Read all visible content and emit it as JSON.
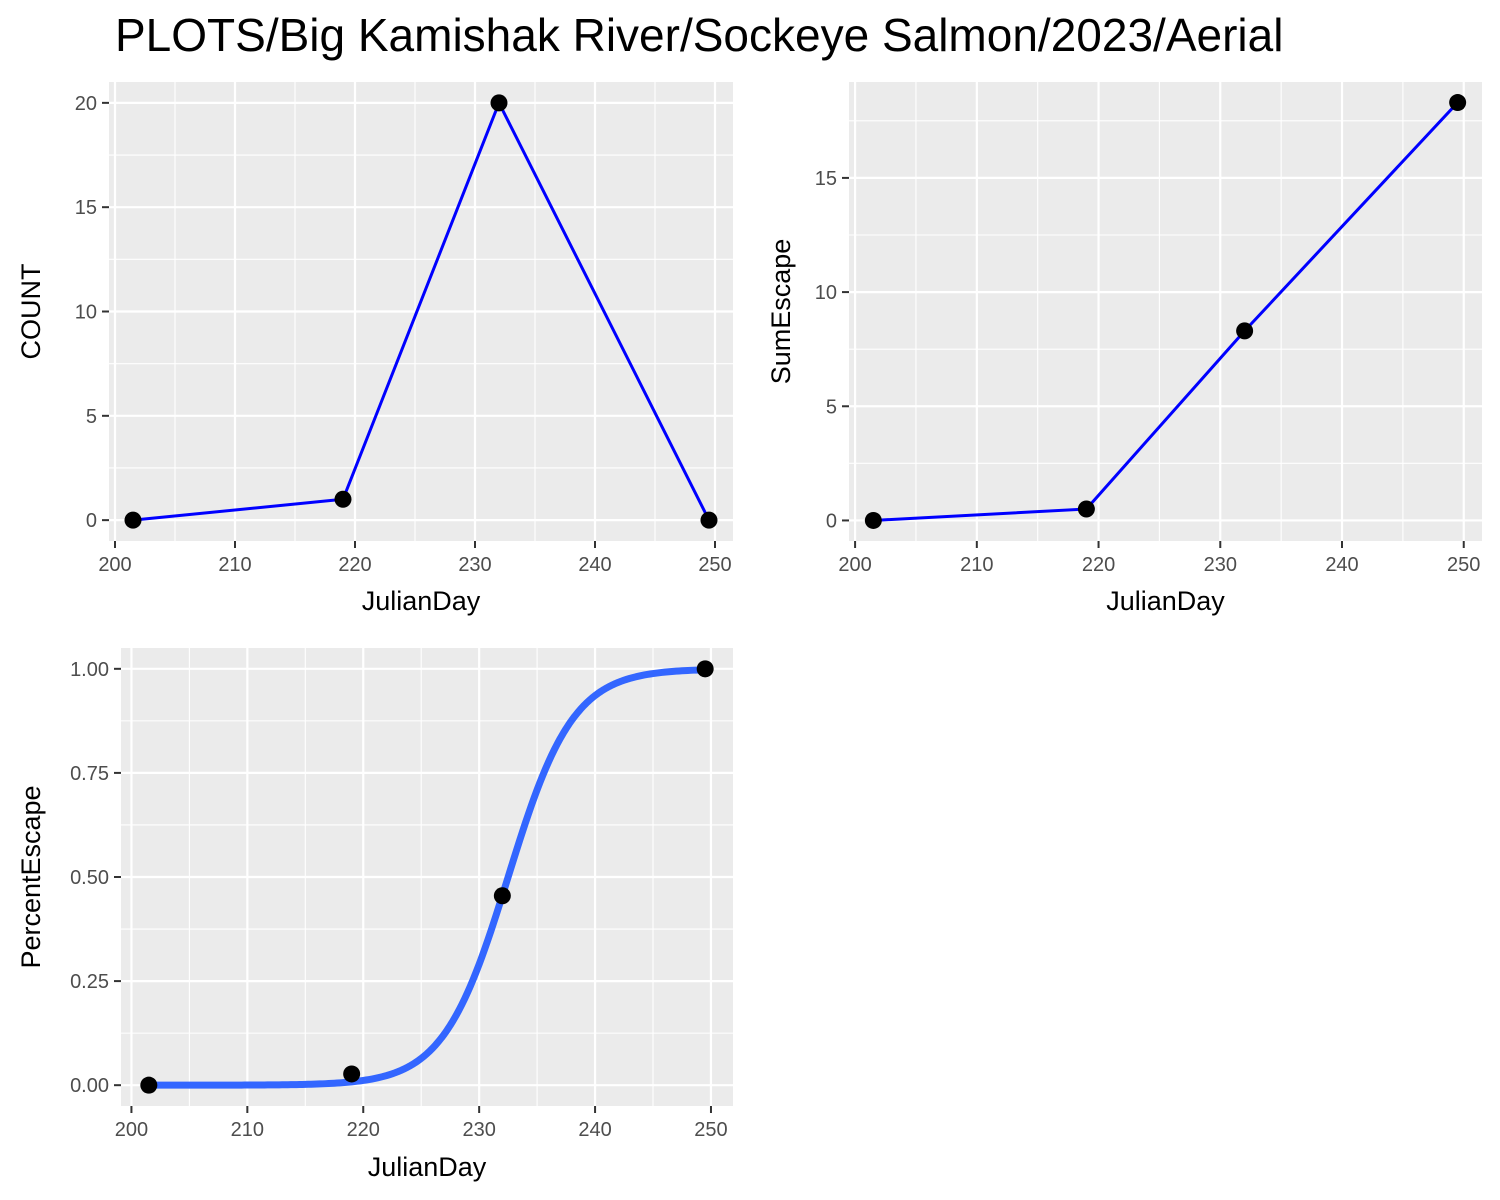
{
  "title": "PLOTS/Big Kamishak River/Sockeye Salmon/2023/Aerial",
  "chart_data": [
    {
      "id": "count",
      "type": "line",
      "xlabel": "JulianDay",
      "ylabel": "COUNT",
      "xlim": [
        199.5,
        251.5
      ],
      "ylim": [
        -1,
        21
      ],
      "x_ticks": [
        200,
        210,
        220,
        230,
        240,
        250
      ],
      "x_tick_labels": [
        "200",
        "210",
        "220",
        "230",
        "240",
        "250"
      ],
      "y_ticks": [
        0,
        5,
        10,
        15,
        20
      ],
      "y_tick_labels": [
        "0",
        "5",
        "10",
        "15",
        "20"
      ],
      "grid": true,
      "line_color": "#0000ff",
      "point_color": "#000000",
      "points": [
        {
          "x": 201.5,
          "y": 0
        },
        {
          "x": 219,
          "y": 1
        },
        {
          "x": 232,
          "y": 20
        },
        {
          "x": 249.5,
          "y": 0
        }
      ]
    },
    {
      "id": "sumescape",
      "type": "line",
      "xlabel": "JulianDay",
      "ylabel": "SumEscape",
      "xlim": [
        199.5,
        251.5
      ],
      "ylim": [
        -0.9,
        19.2
      ],
      "x_ticks": [
        200,
        210,
        220,
        230,
        240,
        250
      ],
      "x_tick_labels": [
        "200",
        "210",
        "220",
        "230",
        "240",
        "250"
      ],
      "y_ticks": [
        0,
        5,
        10,
        15
      ],
      "y_tick_labels": [
        "0",
        "5",
        "10",
        "15"
      ],
      "grid": true,
      "line_color": "#0000ff",
      "point_color": "#000000",
      "points": [
        {
          "x": 201.5,
          "y": 0
        },
        {
          "x": 219,
          "y": 0.5
        },
        {
          "x": 232,
          "y": 8.3
        },
        {
          "x": 249.5,
          "y": 18.3
        }
      ]
    },
    {
      "id": "percentescape",
      "type": "scatter",
      "xlabel": "JulianDay",
      "ylabel": "PercentEscape",
      "xlim": [
        199.1,
        251.9
      ],
      "ylim": [
        -0.05,
        1.05
      ],
      "x_ticks": [
        200,
        210,
        220,
        230,
        240,
        250
      ],
      "x_tick_labels": [
        "200",
        "210",
        "220",
        "230",
        "240",
        "250"
      ],
      "y_ticks": [
        0,
        0.25,
        0.5,
        0.75,
        1
      ],
      "y_tick_labels": [
        "0.00",
        "0.25",
        "0.50",
        "0.75",
        "1.00"
      ],
      "grid": true,
      "point_color": "#000000",
      "points": [
        {
          "x": 201.5,
          "y": 0
        },
        {
          "x": 219,
          "y": 0.027
        },
        {
          "x": 232,
          "y": 0.455
        },
        {
          "x": 249.5,
          "y": 1
        }
      ],
      "fitted_curve": {
        "type": "logistic",
        "color": "#3366ff",
        "midpoint": 232.5,
        "scale": 2.8,
        "x_range": [
          201.5,
          249.5
        ]
      }
    }
  ]
}
